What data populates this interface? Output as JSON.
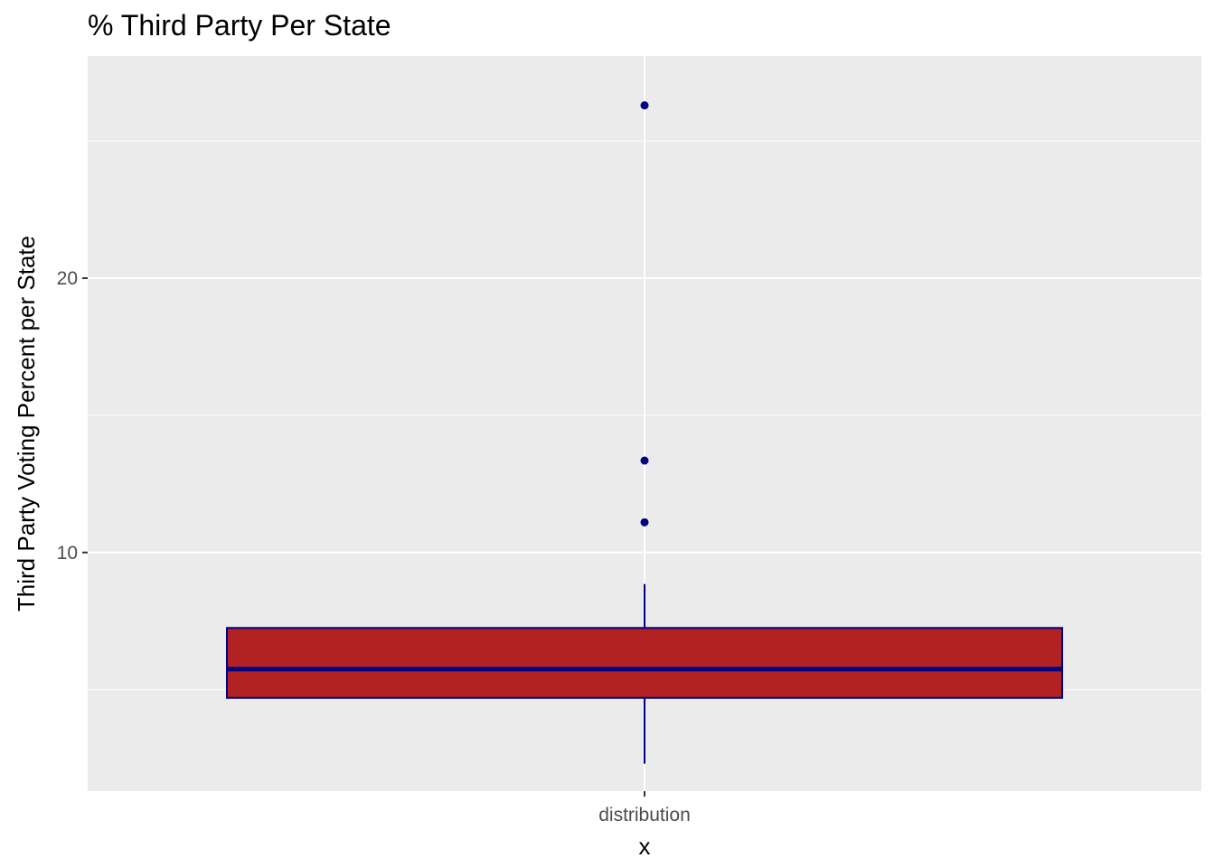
{
  "chart_data": {
    "type": "boxplot",
    "title": "% Third Party Per State",
    "xlabel": "x",
    "ylabel": "Third Party Voting Percent per State",
    "categories": [
      "distribution"
    ],
    "ylim": [
      1.3,
      28.1
    ],
    "yticks": [
      10,
      20
    ],
    "box": {
      "category": "distribution",
      "min": 2.3,
      "q1": 4.7,
      "median": 5.75,
      "q3": 7.25,
      "max": 8.85,
      "outliers": [
        11.1,
        13.35,
        26.3
      ]
    },
    "grid": true,
    "legend": "none",
    "colors": {
      "panel_background": "#ebebeb",
      "grid": "#ffffff",
      "box_fill": "#b22222",
      "box_line": "#000080",
      "outlier": "#000080"
    }
  }
}
